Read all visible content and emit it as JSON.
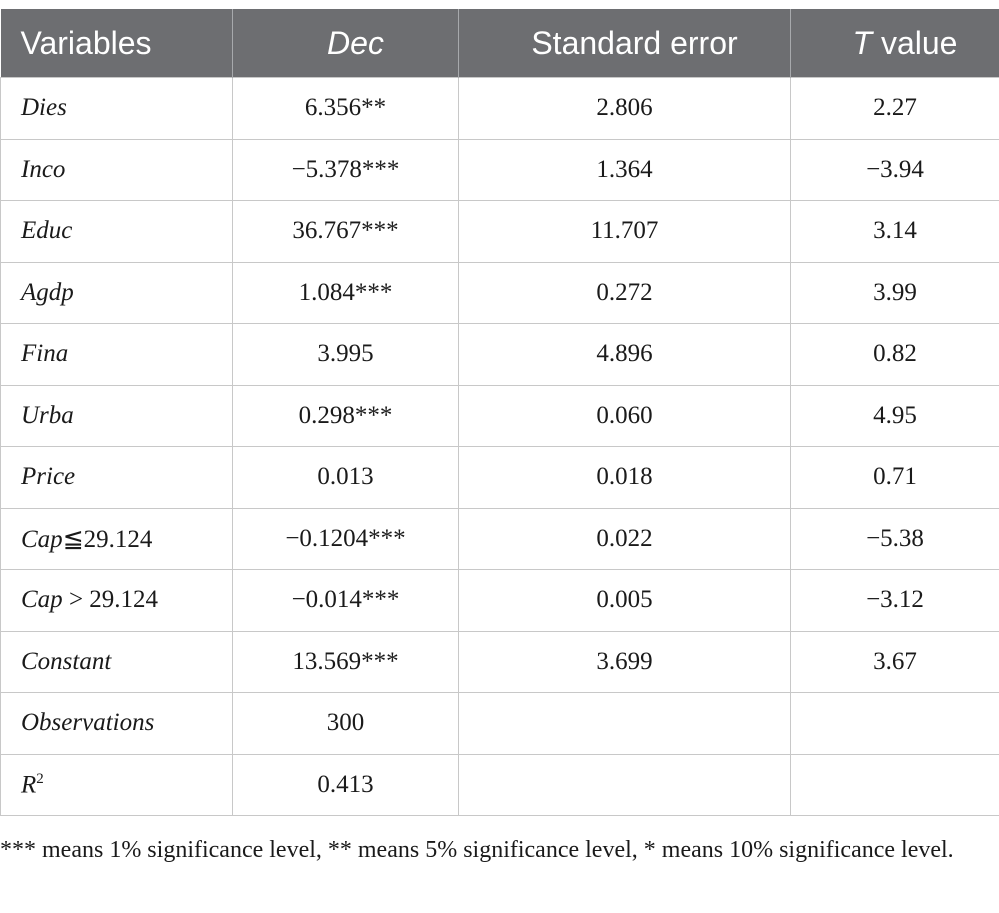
{
  "table": {
    "headers": {
      "variables": "Variables",
      "dec": "Dec",
      "se": "Standard error",
      "t_italic": "T",
      "t_rest": " value"
    },
    "rows": [
      {
        "var": "Dies",
        "dec": "6.356**",
        "se": "2.806",
        "t": "2.27"
      },
      {
        "var": "Inco",
        "dec": "−5.378***",
        "se": "1.364",
        "t": "−3.94"
      },
      {
        "var": "Educ",
        "dec": "36.767***",
        "se": "11.707",
        "t": "3.14"
      },
      {
        "var": "Agdp",
        "dec": "1.084***",
        "se": "0.272",
        "t": "3.99"
      },
      {
        "var": "Fina",
        "dec": "3.995",
        "se": "4.896",
        "t": "0.82"
      },
      {
        "var": "Urba",
        "dec": "0.298***",
        "se": "0.060",
        "t": "4.95"
      },
      {
        "var": "Price",
        "dec": "0.013",
        "se": "0.018",
        "t": "0.71"
      },
      {
        "var": "Cap",
        "var_suffix": "≦29.124",
        "dec": "−0.1204***",
        "se": "0.022",
        "t": "−5.38"
      },
      {
        "var": "Cap",
        "var_suffix": " > 29.124",
        "dec": "−0.014***",
        "se": "0.005",
        "t": "−3.12"
      },
      {
        "var": "Constant",
        "dec": "13.569***",
        "se": "3.699",
        "t": "3.67"
      },
      {
        "var": "Observations",
        "dec": "300",
        "se": "",
        "t": ""
      },
      {
        "var": "R",
        "var_sup": "2",
        "dec": "0.413",
        "se": "",
        "t": ""
      }
    ]
  },
  "footnote": "*** means 1% significance level, ** means 5% significance level, * means 10% significance level."
}
